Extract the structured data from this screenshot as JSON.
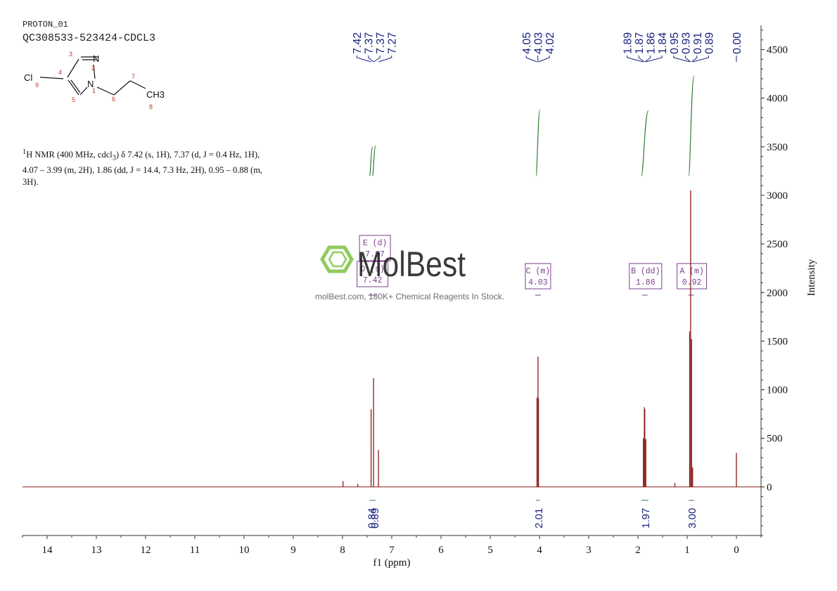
{
  "header": {
    "experiment": "PROTON_01",
    "sample": "QC308533-523424-CDCL3"
  },
  "nmr_summary": {
    "line1": "H NMR (400 MHz, cdcl",
    "sup": "1",
    "sub": "3",
    "line1_rest": ") δ 7.42 (s, 1H), 7.37 (d, J = 0.4 Hz, 1H),",
    "line2": "4.07 – 3.99 (m, 2H), 1.86 (dd, J = 14.4, 7.3 Hz, 2H), 0.95 – 0.88 (m,",
    "line3": "3H)."
  },
  "structure": {
    "atoms": [
      "Cl",
      "N",
      "N",
      "CH3"
    ],
    "atom_numbers": [
      "1",
      "2",
      "3",
      "4",
      "5",
      "6",
      "7",
      "8",
      "9"
    ]
  },
  "watermark": {
    "brand": "MolBest",
    "tagline": "molBest.com, 180K+ Chemical Reagents In Stock."
  },
  "colors": {
    "spectrum": "#8b1a1a",
    "integral": "#2e7d32",
    "peak_label": "#1a237e",
    "multiplet_box": "#7b3f8f",
    "watermark_green": "#7dc242",
    "axis": "#333333"
  },
  "chart_data": {
    "type": "line",
    "xlabel": "f1 (ppm)",
    "ylabel": "Intensity",
    "xlim": [
      14.5,
      -0.5
    ],
    "ylim": [
      -500,
      4750
    ],
    "xticks": [
      "14",
      "13",
      "12",
      "11",
      "10",
      "9",
      "8",
      "7",
      "6",
      "5",
      "4",
      "3",
      "2",
      "1",
      "0"
    ],
    "yticks": [
      "4500",
      "4000",
      "3500",
      "3000",
      "2500",
      "2000",
      "1500",
      "1000",
      "500",
      "0"
    ],
    "ytick_values": [
      4500,
      4000,
      3500,
      3000,
      2500,
      2000,
      1500,
      1000,
      500,
      0
    ],
    "peaks": [
      {
        "ppm": 7.99,
        "height": 60
      },
      {
        "ppm": 7.69,
        "height": 30
      },
      {
        "ppm": 7.42,
        "height": 800
      },
      {
        "ppm": 7.37,
        "height": 1120
      },
      {
        "ppm": 7.27,
        "height": 380
      },
      {
        "ppm": 4.05,
        "height": 920
      },
      {
        "ppm": 4.03,
        "height": 1340
      },
      {
        "ppm": 4.02,
        "height": 910
      },
      {
        "ppm": 1.89,
        "height": 500
      },
      {
        "ppm": 1.87,
        "height": 820
      },
      {
        "ppm": 1.86,
        "height": 800
      },
      {
        "ppm": 1.84,
        "height": 490
      },
      {
        "ppm": 1.25,
        "height": 40
      },
      {
        "ppm": 0.95,
        "height": 1600
      },
      {
        "ppm": 0.93,
        "height": 3050
      },
      {
        "ppm": 0.91,
        "height": 1520
      },
      {
        "ppm": 0.89,
        "height": 200
      },
      {
        "ppm": 0.0,
        "height": 350
      }
    ],
    "peak_labels": [
      {
        "text": "7.42",
        "ppm": 7.42,
        "group": 0
      },
      {
        "text": "7.37",
        "ppm": 7.37,
        "group": 0
      },
      {
        "text": "7.37",
        "ppm": 7.37,
        "group": 0
      },
      {
        "text": "7.27",
        "ppm": 7.27,
        "group": 0
      },
      {
        "text": "4.05",
        "ppm": 4.05,
        "group": 1
      },
      {
        "text": "4.03",
        "ppm": 4.03,
        "group": 1
      },
      {
        "text": "4.02",
        "ppm": 4.02,
        "group": 1
      },
      {
        "text": "1.89",
        "ppm": 1.89,
        "group": 2
      },
      {
        "text": "1.87",
        "ppm": 1.87,
        "group": 2
      },
      {
        "text": "1.86",
        "ppm": 1.86,
        "group": 2
      },
      {
        "text": "1.84",
        "ppm": 1.84,
        "group": 2
      },
      {
        "text": "0.95",
        "ppm": 0.95,
        "group": 3
      },
      {
        "text": "0.93",
        "ppm": 0.93,
        "group": 3
      },
      {
        "text": "0.91",
        "ppm": 0.91,
        "group": 3
      },
      {
        "text": "0.89",
        "ppm": 0.89,
        "group": 3
      },
      {
        "text": "0.00",
        "ppm": 0.0,
        "group": 4
      }
    ],
    "integrals": [
      {
        "value": "0.84",
        "from": 7.45,
        "to": 7.39,
        "y_start": 3200,
        "y_end": 3500
      },
      {
        "value": "0.89",
        "from": 7.39,
        "to": 7.33,
        "y_start": 3200,
        "y_end": 3510
      },
      {
        "value": "2.01",
        "from": 4.07,
        "to": 3.99,
        "y_start": 3200,
        "y_end": 3880
      },
      {
        "value": "1.97",
        "from": 1.93,
        "to": 1.79,
        "y_start": 3200,
        "y_end": 3870
      },
      {
        "value": "3.00",
        "from": 0.97,
        "to": 0.86,
        "y_start": 3200,
        "y_end": 4230
      }
    ],
    "multiplets": [
      {
        "letter": "E (d)",
        "shift": "7.37",
        "ppm": 7.37
      },
      {
        "letter": "D (s)",
        "shift": "7.42",
        "ppm": 7.42
      },
      {
        "letter": "C (m)",
        "shift": "4.03",
        "ppm": 4.03
      },
      {
        "letter": "B (dd)",
        "shift": "1.86",
        "ppm": 1.86
      },
      {
        "letter": "A (m)",
        "shift": "0.92",
        "ppm": 0.92
      }
    ]
  }
}
